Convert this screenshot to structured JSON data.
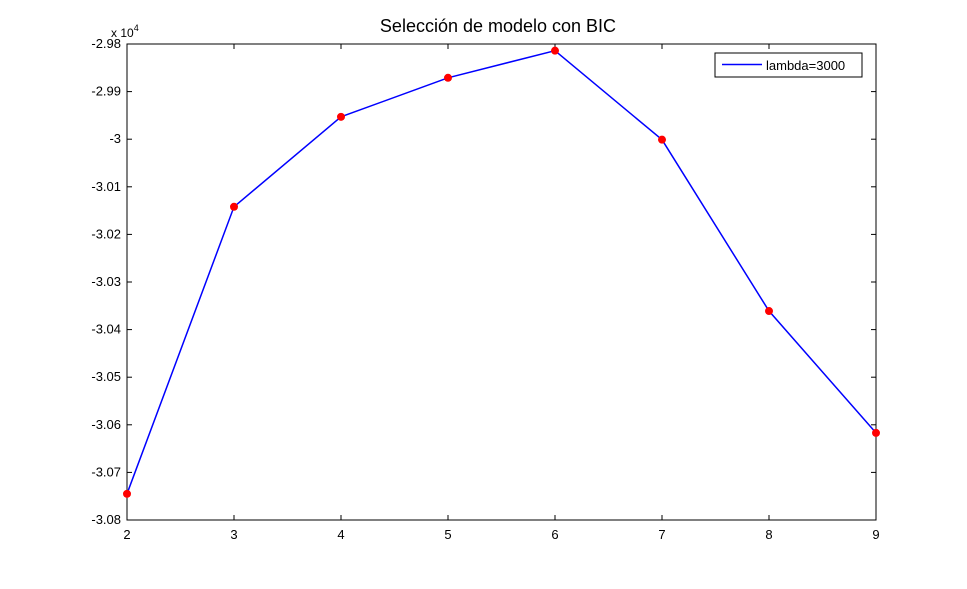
{
  "chart_data": {
    "type": "line",
    "title": "Selección de modelo con BIC",
    "xlabel": "",
    "ylabel": "",
    "x": [
      2,
      3,
      4,
      5,
      6,
      7,
      8,
      9
    ],
    "xlim": [
      2,
      9
    ],
    "ylim": [
      -30800,
      -29800
    ],
    "x_ticks": [
      "2",
      "3",
      "4",
      "5",
      "6",
      "7",
      "8",
      "9"
    ],
    "y_ticks": [
      "-2.98",
      "-2.99",
      "-3",
      "-3.01",
      "-3.02",
      "-3.03",
      "-3.04",
      "-3.05",
      "-3.06",
      "-3.07",
      "-3.08"
    ],
    "y_exponent_label": "x 10",
    "y_exponent_power": "4",
    "grid": false,
    "legend_position": "top-right",
    "series": [
      {
        "name": "lambda=3000",
        "line_color": "#0000ff",
        "marker_color": "#ff0000",
        "values": [
          -30745,
          -30142,
          -29953,
          -29871,
          -29814,
          -30001,
          -30361,
          -30617
        ]
      }
    ]
  }
}
